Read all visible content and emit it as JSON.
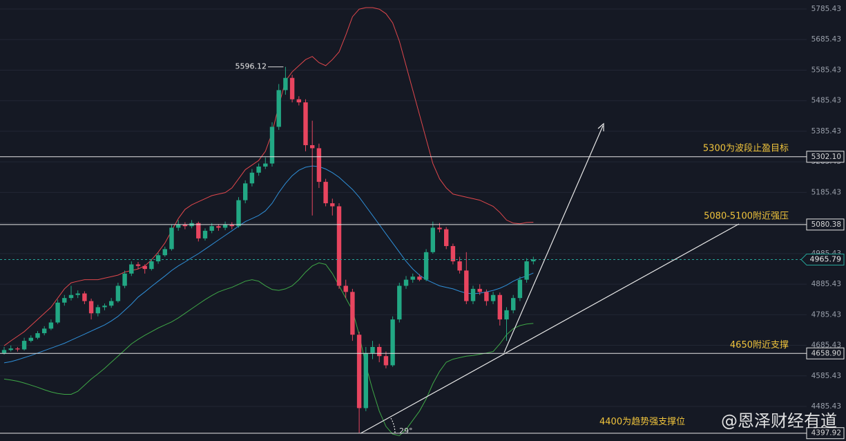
{
  "chart_data": {
    "type": "candlestick",
    "ylim": [
      4372.37,
      5814.82
    ],
    "yticks": [
      4485.43,
      4585.43,
      4685.43,
      4785.43,
      4885.43,
      4985.43,
      5085.43,
      5185.43,
      5285.43,
      5385.43,
      5485.43,
      5585.43,
      5685.43,
      5785.43
    ],
    "grid": true,
    "up_color": "#22a884",
    "down_color": "#e8455f",
    "candles": [
      [
        4660,
        4680,
        4655,
        4670
      ],
      [
        4670,
        4685,
        4665,
        4675
      ],
      [
        4675,
        4680,
        4665,
        4672
      ],
      [
        4672,
        4710,
        4668,
        4700
      ],
      [
        4700,
        4718,
        4695,
        4710
      ],
      [
        4710,
        4732,
        4705,
        4725
      ],
      [
        4725,
        4748,
        4718,
        4740
      ],
      [
        4740,
        4770,
        4735,
        4760
      ],
      [
        4760,
        4835,
        4755,
        4825
      ],
      [
        4825,
        4850,
        4815,
        4840
      ],
      [
        4840,
        4880,
        4832,
        4850
      ],
      [
        4850,
        4865,
        4840,
        4855
      ],
      [
        4855,
        4862,
        4820,
        4830
      ],
      [
        4830,
        4838,
        4770,
        4790
      ],
      [
        4790,
        4818,
        4780,
        4810
      ],
      [
        4810,
        4822,
        4800,
        4815
      ],
      [
        4815,
        4840,
        4808,
        4830
      ],
      [
        4830,
        4890,
        4825,
        4880
      ],
      [
        4880,
        4930,
        4872,
        4920
      ],
      [
        4920,
        4960,
        4912,
        4950
      ],
      [
        4950,
        4958,
        4935,
        4945
      ],
      [
        4945,
        4950,
        4920,
        4935
      ],
      [
        4935,
        4968,
        4930,
        4960
      ],
      [
        4960,
        4988,
        4952,
        4980
      ],
      [
        4980,
        5008,
        4975,
        5000
      ],
      [
        5000,
        5080,
        4995,
        5070
      ],
      [
        5070,
        5095,
        5060,
        5080
      ],
      [
        5080,
        5088,
        5065,
        5075
      ],
      [
        5075,
        5095,
        5068,
        5085
      ],
      [
        5085,
        5090,
        5025,
        5035
      ],
      [
        5035,
        5068,
        5028,
        5060
      ],
      [
        5060,
        5085,
        5052,
        5075
      ],
      [
        5075,
        5082,
        5060,
        5070
      ],
      [
        5070,
        5090,
        5062,
        5080
      ],
      [
        5080,
        5088,
        5065,
        5075
      ],
      [
        5075,
        5170,
        5070,
        5160
      ],
      [
        5160,
        5225,
        5150,
        5215
      ],
      [
        5215,
        5262,
        5205,
        5250
      ],
      [
        5250,
        5280,
        5240,
        5270
      ],
      [
        5270,
        5300,
        5262,
        5280
      ],
      [
        5280,
        5415,
        5270,
        5400
      ],
      [
        5400,
        5540,
        5390,
        5520
      ],
      [
        5520,
        5596.12,
        5505,
        5560
      ],
      [
        5560,
        5570,
        5480,
        5490
      ],
      [
        5490,
        5500,
        5470,
        5480
      ],
      [
        5480,
        5490,
        5320,
        5340
      ],
      [
        5340,
        5420,
        5110,
        5330
      ],
      [
        5330,
        5345,
        5200,
        5220
      ],
      [
        5220,
        5230,
        5140,
        5150
      ],
      [
        5150,
        5165,
        5110,
        5140
      ],
      [
        5140,
        5150,
        4870,
        4880
      ],
      [
        4880,
        4900,
        4840,
        4860
      ],
      [
        4860,
        4870,
        4700,
        4720
      ],
      [
        4720,
        4730,
        4397.92,
        4480
      ],
      [
        4480,
        4680,
        4470,
        4660
      ],
      [
        4660,
        4700,
        4640,
        4680
      ],
      [
        4680,
        4690,
        4630,
        4650
      ],
      [
        4650,
        4665,
        4610,
        4620
      ],
      [
        4620,
        4780,
        4615,
        4770
      ],
      [
        4770,
        4890,
        4760,
        4880
      ],
      [
        4880,
        4912,
        4870,
        4900
      ],
      [
        4900,
        4920,
        4890,
        4910
      ],
      [
        4910,
        4918,
        4895,
        4900
      ],
      [
        4900,
        5000,
        4895,
        4990
      ],
      [
        4990,
        5090,
        4985,
        5070
      ],
      [
        5070,
        5085,
        5055,
        5065
      ],
      [
        5065,
        5072,
        5000,
        5010
      ],
      [
        5010,
        5018,
        4950,
        4960
      ],
      [
        4960,
        4975,
        4920,
        4930
      ],
      [
        4930,
        4990,
        4820,
        4830
      ],
      [
        4830,
        4880,
        4820,
        4870
      ],
      [
        4870,
        4885,
        4850,
        4860
      ],
      [
        4860,
        4868,
        4815,
        4830
      ],
      [
        4830,
        4860,
        4820,
        4850
      ],
      [
        4850,
        4858,
        4750,
        4770
      ],
      [
        4770,
        4810,
        4700,
        4800
      ],
      [
        4800,
        4850,
        4790,
        4840
      ],
      [
        4840,
        4910,
        4830,
        4900
      ],
      [
        4900,
        4970,
        4890,
        4960
      ],
      [
        4960,
        4975,
        4950,
        4966
      ]
    ],
    "bands": [
      {
        "color": "#e0474c",
        "values": [
          4684,
          4700,
          4715,
          4730,
          4750,
          4770,
          4790,
          4810,
          4840,
          4870,
          4890,
          4895,
          4900,
          4900,
          4900,
          4905,
          4910,
          4915,
          4925,
          4930,
          4935,
          4945,
          4965,
          4990,
          5020,
          5060,
          5100,
          5130,
          5145,
          5155,
          5165,
          5175,
          5180,
          5185,
          5200,
          5230,
          5260,
          5275,
          5290,
          5320,
          5380,
          5470,
          5550,
          5580,
          5600,
          5620,
          5630,
          5610,
          5600,
          5620,
          5645,
          5700,
          5760,
          5785,
          5790,
          5790,
          5785,
          5770,
          5740,
          5680,
          5600,
          5520,
          5440,
          5360,
          5280,
          5230,
          5200,
          5180,
          5175,
          5170,
          5165,
          5160,
          5150,
          5140,
          5120,
          5095,
          5085,
          5083,
          5087,
          5088
        ]
      },
      {
        "color": "#2f8fd8",
        "values": [
          4628,
          4632,
          4638,
          4645,
          4652,
          4660,
          4668,
          4676,
          4684,
          4692,
          4702,
          4712,
          4722,
          4732,
          4742,
          4752,
          4765,
          4780,
          4800,
          4820,
          4843,
          4860,
          4878,
          4895,
          4912,
          4930,
          4945,
          4958,
          4972,
          4985,
          5000,
          5015,
          5030,
          5045,
          5060,
          5075,
          5090,
          5100,
          5110,
          5125,
          5150,
          5185,
          5215,
          5240,
          5258,
          5268,
          5272,
          5270,
          5262,
          5250,
          5235,
          5215,
          5195,
          5170,
          5140,
          5110,
          5080,
          5050,
          5020,
          4990,
          4960,
          4935,
          4915,
          4900,
          4890,
          4880,
          4875,
          4870,
          4862,
          4856,
          4854,
          4856,
          4860,
          4865,
          4872,
          4882,
          4895,
          4905,
          4912,
          4922
        ]
      },
      {
        "color": "#3fa847",
        "values": [
          4575,
          4572,
          4568,
          4562,
          4555,
          4548,
          4540,
          4533,
          4528,
          4525,
          4525,
          4535,
          4555,
          4575,
          4592,
          4610,
          4630,
          4650,
          4670,
          4690,
          4705,
          4718,
          4730,
          4742,
          4752,
          4762,
          4775,
          4790,
          4805,
          4820,
          4835,
          4848,
          4860,
          4868,
          4875,
          4885,
          4895,
          4900,
          4895,
          4880,
          4868,
          4865,
          4870,
          4880,
          4900,
          4925,
          4945,
          4955,
          4950,
          4920,
          4880,
          4840,
          4800,
          4720,
          4620,
          4540,
          4470,
          4420,
          4395,
          4390,
          4410,
          4440,
          4470,
          4510,
          4560,
          4600,
          4630,
          4640,
          4645,
          4650,
          4652,
          4656,
          4660,
          4665,
          4690,
          4720,
          4740,
          4750,
          4755,
          4757
        ]
      }
    ],
    "levels": [
      {
        "value": 5302.1,
        "label": "5302.10",
        "text": "5300为波段止盈目标"
      },
      {
        "value": 5080.38,
        "label": 5080.38,
        "text": "5080-5100附近强压"
      },
      {
        "value": 4658.9,
        "label": "4658.90",
        "text": "4650附近支撑"
      },
      {
        "value": 4397.92,
        "label": 4397.92,
        "text": "4400为趋势强支撑位"
      }
    ],
    "last_price": 4965.79,
    "last_color": "#26a69a",
    "angle_label": "29°",
    "watermark": "@恩泽财经有道"
  }
}
